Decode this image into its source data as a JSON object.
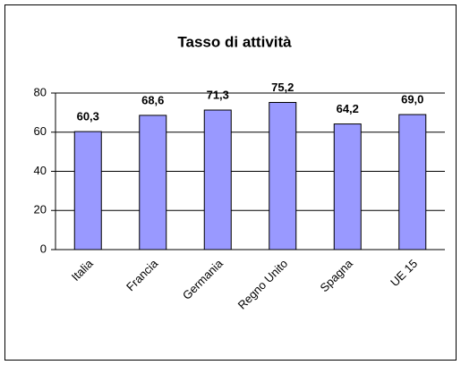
{
  "chart_data": {
    "type": "bar",
    "title": "Tasso di attività",
    "categories": [
      "Italia",
      "Francia",
      "Germania",
      "Regno Unito",
      "Spagna",
      "UE 15"
    ],
    "values": [
      60.3,
      68.6,
      71.3,
      75.2,
      64.2,
      69.0
    ],
    "value_labels": [
      "60,3",
      "68,6",
      "71,3",
      "75,2",
      "64,2",
      "69,0"
    ],
    "color": "#9999ff",
    "ylim": [
      0,
      80
    ],
    "yticks": [
      0,
      20,
      40,
      60,
      80
    ],
    "grid": true
  }
}
